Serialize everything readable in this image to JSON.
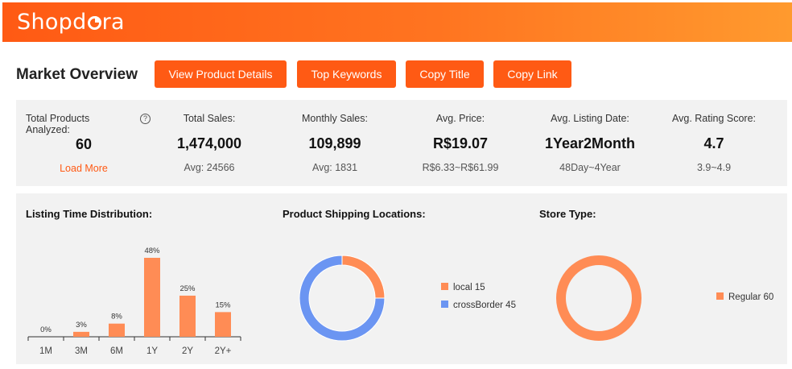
{
  "brand": {
    "logo_text_before": "Shopd",
    "logo_text_after": "ra"
  },
  "title": "Market Overview",
  "buttons": {
    "view_details": "View Product Details",
    "top_keywords": "Top Keywords",
    "copy_title": "Copy Title",
    "copy_link": "Copy Link"
  },
  "stats": {
    "total_products": {
      "label_line1": "Total Products",
      "label_line2": "Analyzed:",
      "value": "60",
      "action": "Load More",
      "help": "?"
    },
    "total_sales": {
      "label": "Total Sales:",
      "value": "1,474,000",
      "sub": "Avg: 24566"
    },
    "monthly_sales": {
      "label": "Monthly Sales:",
      "value": "109,899",
      "sub": "Avg: 1831"
    },
    "avg_price": {
      "label": "Avg. Price:",
      "value": "R$19.07",
      "sub": "R$6.33~R$61.99"
    },
    "avg_listing_date": {
      "label": "Avg. Listing Date:",
      "value": "1Year2Month",
      "sub": "48Day~4Year"
    },
    "avg_rating": {
      "label": "Avg. Rating Score:",
      "value": "4.7",
      "sub": "3.9~4.9"
    }
  },
  "colors": {
    "accent": "#ff5a14",
    "bar": "#ff8c55",
    "local": "#ff8c55",
    "crossborder": "#6b95f2",
    "regular": "#ff8c55"
  },
  "chart_data": [
    {
      "type": "bar",
      "title": "Listing Time Distribution:",
      "categories": [
        "1M",
        "3M",
        "6M",
        "1Y",
        "2Y",
        "2Y+"
      ],
      "values": [
        0,
        3,
        8,
        48,
        25,
        15
      ],
      "value_labels": [
        "0%",
        "3%",
        "8%",
        "48%",
        "25%",
        "15%"
      ],
      "unit": "%"
    },
    {
      "type": "pie",
      "title": "Product Shipping Locations:",
      "series": [
        {
          "name": "local",
          "value": 15
        },
        {
          "name": "crossBorder",
          "value": 45
        }
      ],
      "legend": [
        "local 15",
        "crossBorder 45"
      ]
    },
    {
      "type": "pie",
      "title": "Store Type:",
      "series": [
        {
          "name": "Regular",
          "value": 60
        }
      ],
      "legend": [
        "Regular 60"
      ]
    }
  ]
}
